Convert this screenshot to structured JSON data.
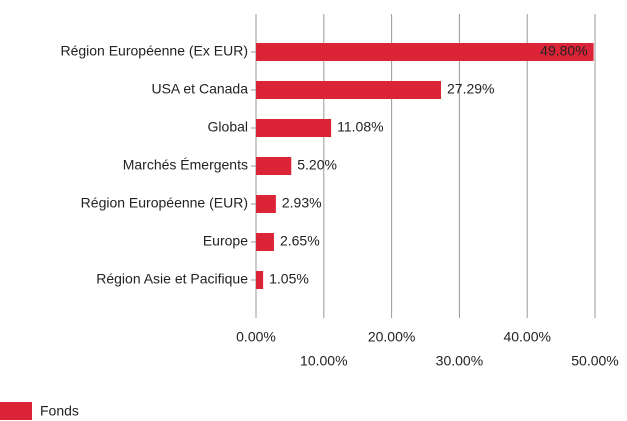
{
  "chart_data": {
    "type": "barh",
    "categories": [
      "Région Européenne (Ex EUR)",
      "USA et Canada",
      "Global",
      "Marchés Émergents",
      "Région Européenne (EUR)",
      "Europe",
      "Région Asie et Pacifique"
    ],
    "series": [
      {
        "name": "Fonds",
        "color": "#dc2439",
        "values": [
          49.8,
          27.29,
          11.08,
          5.2,
          2.93,
          2.65,
          1.05
        ],
        "value_labels": [
          "49.80%",
          "27.29%",
          "11.08%",
          "5.20%",
          "2.93%",
          "2.65%",
          "1.05%"
        ]
      }
    ],
    "xlim": [
      0,
      50
    ],
    "xticks": [
      {
        "value": 0,
        "label": "0.00%"
      },
      {
        "value": 10,
        "label": "10.00%"
      },
      {
        "value": 20,
        "label": "20.00%"
      },
      {
        "value": 30,
        "label": "30.00%"
      },
      {
        "value": 40,
        "label": "40.00%"
      },
      {
        "value": 50,
        "label": "50.00%"
      }
    ],
    "grid": true,
    "legend": "bottom-left"
  }
}
